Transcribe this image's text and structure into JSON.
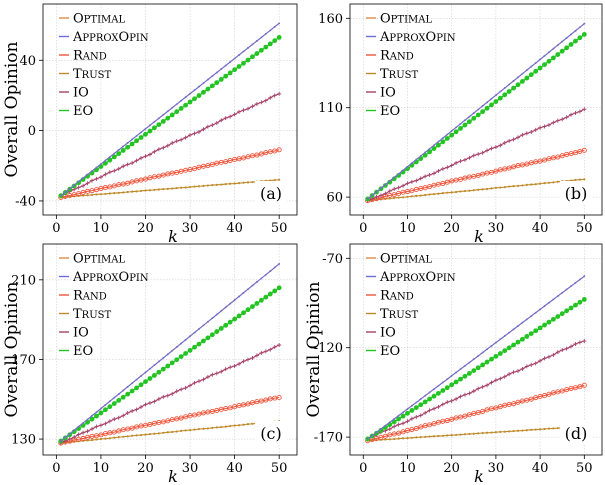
{
  "figure": {
    "series_legend": [
      "Optimal",
      "ApproxOpin",
      "Rand",
      "Trust",
      "IO",
      "EO"
    ],
    "colors": {
      "Optimal": "#e08a4a",
      "ApproxOpin": "#6b6fd6",
      "Rand": "#f0563c",
      "Trust": "#c08a2a",
      "IO": "#a8426a",
      "EO": "#22c422",
      "axis": "#000000",
      "grid": "#cfcfcf"
    },
    "grid": true,
    "legend_position": "top-left"
  },
  "chart_data": [
    {
      "type": "line",
      "panel_label": "(a)",
      "xlabel": "k",
      "ylabel": "Overall Opinion",
      "xlim": [
        -3,
        54
      ],
      "ylim": [
        -48,
        72
      ],
      "xticks": [
        0,
        10,
        20,
        30,
        40,
        50
      ],
      "yticks": [
        -40,
        0,
        40
      ],
      "x_range": [
        1,
        50
      ],
      "series": [
        {
          "name": "Optimal",
          "start": -37,
          "end": 61
        },
        {
          "name": "ApproxOpin",
          "start": -37,
          "end": 61
        },
        {
          "name": "EO",
          "start": -37,
          "end": 53
        },
        {
          "name": "IO",
          "start": -37,
          "end": 21
        },
        {
          "name": "Rand",
          "start": -38,
          "end": -11
        },
        {
          "name": "Trust",
          "start": -38,
          "end": -28
        }
      ]
    },
    {
      "type": "line",
      "panel_label": "(b)",
      "xlabel": "k",
      "ylabel": "",
      "xlim": [
        -3,
        54
      ],
      "ylim": [
        50,
        168
      ],
      "xticks": [
        0,
        10,
        20,
        30,
        40,
        50
      ],
      "yticks": [
        60,
        110,
        160
      ],
      "x_range": [
        1,
        50
      ],
      "series": [
        {
          "name": "Optimal",
          "start": 59,
          "end": 157
        },
        {
          "name": "ApproxOpin",
          "start": 59,
          "end": 157
        },
        {
          "name": "EO",
          "start": 59,
          "end": 151
        },
        {
          "name": "IO",
          "start": 58,
          "end": 109
        },
        {
          "name": "Rand",
          "start": 58,
          "end": 86
        },
        {
          "name": "Trust",
          "start": 58,
          "end": 70
        }
      ]
    },
    {
      "type": "line",
      "panel_label": "(c)",
      "xlabel": "k",
      "ylabel": "Overall Opinion",
      "xlim": [
        -3,
        54
      ],
      "ylim": [
        122,
        228
      ],
      "xticks": [
        0,
        10,
        20,
        30,
        40,
        50
      ],
      "yticks": [
        130,
        170,
        210
      ],
      "x_range": [
        1,
        50
      ],
      "series": [
        {
          "name": "Optimal",
          "start": 129,
          "end": 218
        },
        {
          "name": "ApproxOpin",
          "start": 129,
          "end": 218
        },
        {
          "name": "EO",
          "start": 129,
          "end": 206
        },
        {
          "name": "IO",
          "start": 128,
          "end": 177
        },
        {
          "name": "Rand",
          "start": 128,
          "end": 151
        },
        {
          "name": "Trust",
          "start": 128,
          "end": 139
        }
      ]
    },
    {
      "type": "line",
      "panel_label": "(d)",
      "xlabel": "k",
      "ylabel": "Overall Opinion",
      "xlim": [
        -3,
        54
      ],
      "ylim": [
        -180,
        -62
      ],
      "xticks": [
        0,
        10,
        20,
        30,
        40,
        50
      ],
      "yticks": [
        -170,
        -120,
        -70
      ],
      "x_range": [
        1,
        50
      ],
      "series": [
        {
          "name": "Optimal",
          "start": -171,
          "end": -80
        },
        {
          "name": "ApproxOpin",
          "start": -171,
          "end": -80
        },
        {
          "name": "EO",
          "start": -171,
          "end": -93
        },
        {
          "name": "IO",
          "start": -171,
          "end": -116
        },
        {
          "name": "Rand",
          "start": -172,
          "end": -141
        },
        {
          "name": "Trust",
          "start": -172,
          "end": -164
        }
      ]
    }
  ]
}
